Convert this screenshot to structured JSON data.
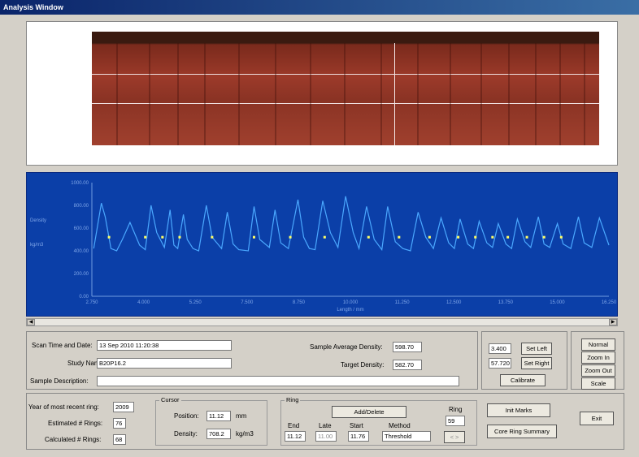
{
  "window": {
    "title": "Analysis Window"
  },
  "chart_data": {
    "type": "line",
    "title": "",
    "ylabel": "Density\nkg/m3",
    "xlabel": "Length / mm",
    "ylim": [
      0,
      1000
    ],
    "xlim": [
      2.7,
      16.25
    ],
    "y_ticks": [
      "1000.00",
      "800.00",
      "600.00",
      "400.00",
      "200.00",
      "0.00"
    ],
    "y_tick_values": [
      1000,
      800,
      600,
      400,
      200,
      0
    ],
    "x_ticks": [
      "2.750",
      "4.000",
      "5.250",
      "7.500",
      "8.750",
      "10.000",
      "11.250",
      "12.500",
      "13.750",
      "15.000",
      "16.250"
    ],
    "series": [
      {
        "x": [
          2.75,
          2.95,
          3.05,
          3.2,
          3.35,
          3.5,
          3.7,
          3.95,
          4.1,
          4.25,
          4.4,
          4.6,
          4.75,
          4.85,
          4.95,
          5.1,
          5.2,
          5.35,
          5.5,
          5.7,
          5.85,
          6.1,
          6.25,
          6.4,
          6.55,
          6.8,
          6.95,
          7.1,
          7.35,
          7.5,
          7.65,
          7.85,
          8.1,
          8.25,
          8.4,
          8.55,
          8.75,
          8.95,
          9.15,
          9.35,
          9.55,
          9.7,
          9.9,
          10.1,
          10.3,
          10.45,
          10.65,
          10.85,
          11.05,
          11.25,
          11.45,
          11.65,
          11.85,
          12.05,
          12.2,
          12.35,
          12.55,
          12.7,
          12.85,
          13.05,
          13.2,
          13.35,
          13.55,
          13.7,
          13.85,
          14.05,
          14.2,
          14.4,
          14.55,
          14.7,
          14.9,
          15.05,
          15.25,
          15.45,
          15.6,
          15.8,
          16.0,
          16.25
        ],
        "y": [
          420,
          820,
          700,
          420,
          400,
          500,
          650,
          450,
          410,
          800,
          560,
          430,
          760,
          450,
          420,
          720,
          500,
          420,
          400,
          800,
          520,
          420,
          740,
          460,
          410,
          400,
          790,
          500,
          430,
          760,
          470,
          420,
          850,
          520,
          420,
          410,
          840,
          560,
          430,
          880,
          560,
          420,
          790,
          500,
          410,
          790,
          480,
          420,
          400,
          740,
          520,
          420,
          690,
          470,
          420,
          680,
          460,
          420,
          660,
          470,
          430,
          640,
          460,
          420,
          680,
          480,
          430,
          700,
          460,
          430,
          640,
          460,
          420,
          700,
          470,
          430,
          690,
          450
        ]
      }
    ],
    "markers_x": [
      3.15,
      4.1,
      4.55,
      5.0,
      5.85,
      6.95,
      7.9,
      8.8,
      9.95,
      10.75,
      11.55,
      12.3,
      12.75,
      13.2,
      13.6,
      14.1,
      14.55,
      15.0
    ],
    "markers_y": 520
  },
  "scan": {
    "time_label": "Scan Time and Date:",
    "time_value": "13 Sep 2010   11:20:38",
    "study_label": "Study Name:",
    "study_value": "B20P16.2",
    "desc_label": "Sample Description:",
    "desc_value": "",
    "avg_density_label": "Sample Average Density:",
    "avg_density_value": "598.70",
    "target_density_label": "Target Density:",
    "target_density_value": "582.70"
  },
  "calibrate": {
    "left_value": "3.400",
    "right_value": "57.720",
    "set_left": "Set Left",
    "set_right": "Set Right",
    "calibrate": "Calibrate"
  },
  "view": {
    "normal": "Normal",
    "zoom_in": "Zoom In",
    "zoom_out": "Zoom Out",
    "scale": "Scale"
  },
  "rings": {
    "year_label": "Year of most recent ring:",
    "year_value": "2009",
    "estimated_label": "Estimated # Rings:",
    "estimated_value": "76",
    "calculated_label": "Calculated # Rings:",
    "calculated_value": "68"
  },
  "cursor": {
    "title": "Cursor",
    "position_label": "Position:",
    "position_value": "11.12",
    "position_unit": "mm",
    "density_label": "Density:",
    "density_value": "708.2",
    "density_unit": "kg/m3"
  },
  "ring": {
    "title": "Ring",
    "add_delete": "Add/Delete",
    "ring_label": "Ring",
    "ring_value": "59",
    "end_label": "End",
    "late_label": "Late",
    "start_label": "Start",
    "method_label": "Method",
    "end_value": "11.12",
    "late_value": "11.00",
    "start_value": "11.76",
    "method_value": "Threshold",
    "nav": "<  >"
  },
  "actions": {
    "init_marks": "Init Marks",
    "core_summary": "Core Ring Summary",
    "exit": "Exit"
  },
  "colors": {
    "chart_bg": "#0b3fa8",
    "line": "#4aa8ff",
    "marker": "#ffff66"
  }
}
